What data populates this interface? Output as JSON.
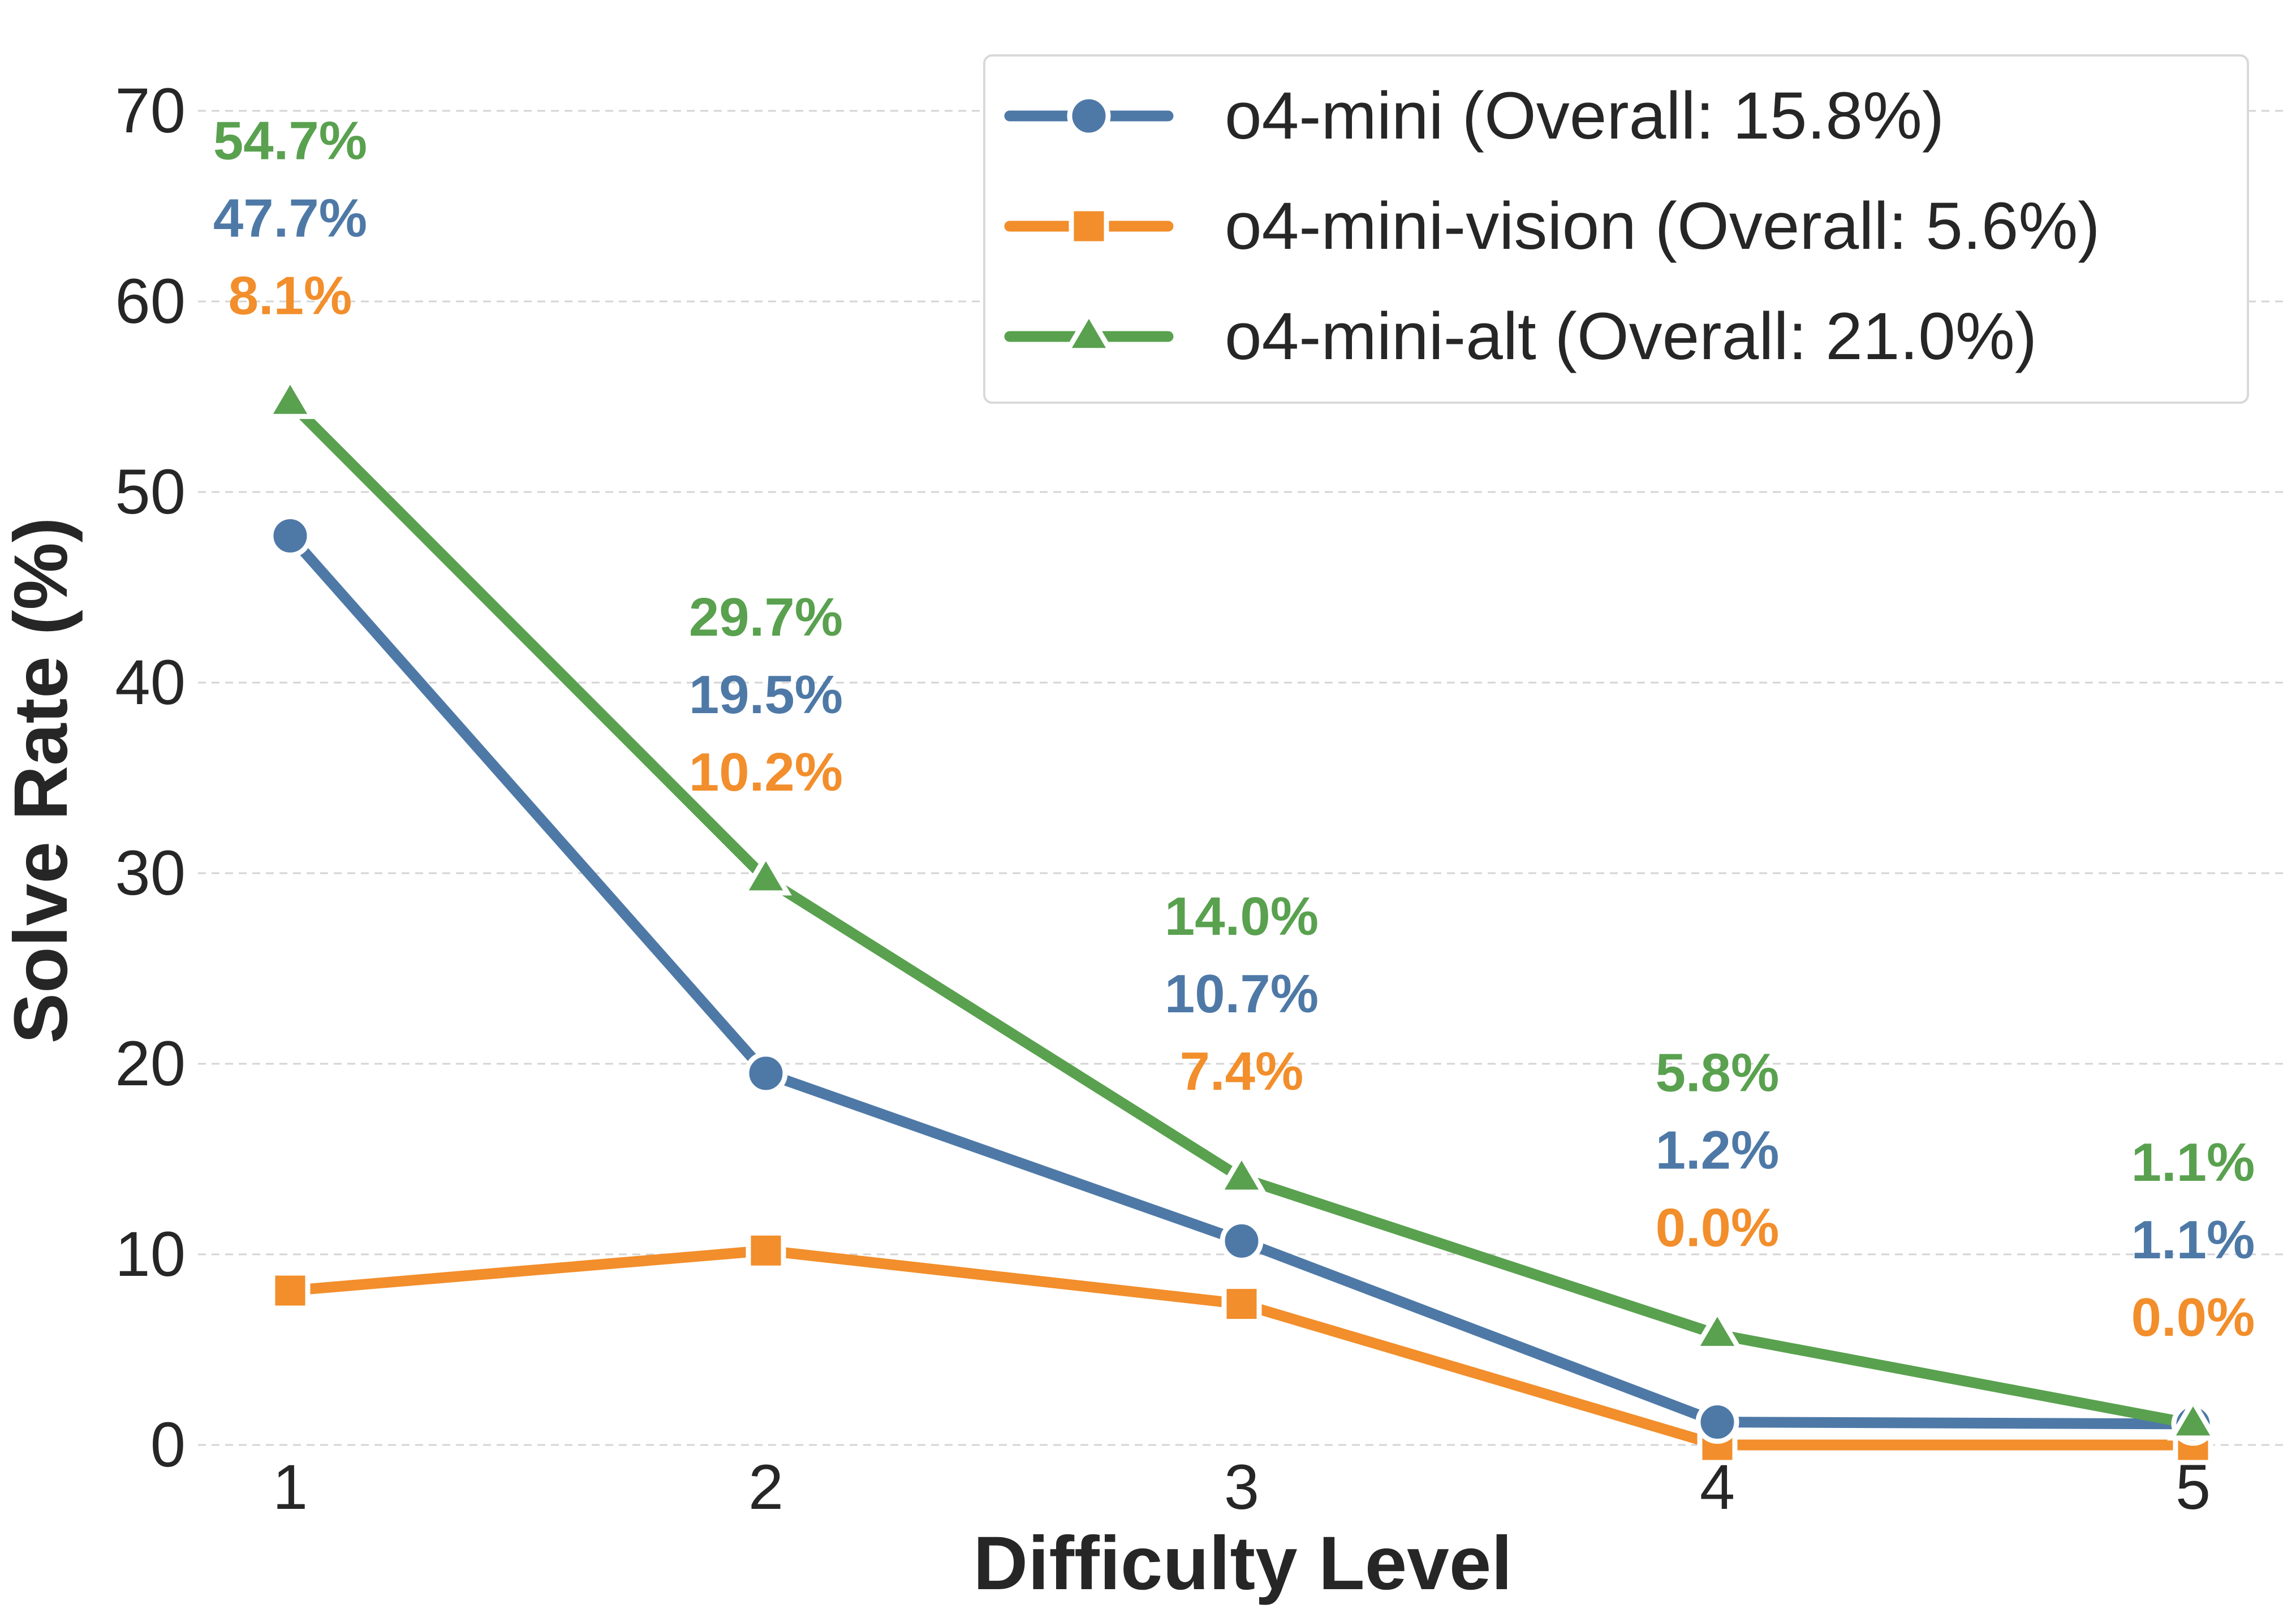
{
  "chart_data": {
    "type": "line",
    "xlabel": "Difficulty Level",
    "ylabel": "Solve Rate (%)",
    "x": [
      1,
      2,
      3,
      4,
      5
    ],
    "xlim": [
      0.8,
      5.2
    ],
    "ylim": [
      0,
      70
    ],
    "yticks": [
      0,
      10,
      20,
      30,
      40,
      50,
      60,
      70
    ],
    "grid": "horizontal dashed",
    "legend_position": "top-right",
    "series": [
      {
        "name": "o4-mini",
        "legend_label": "o4-mini (Overall: 15.8%)",
        "color": "#4e79a7",
        "marker": "circle",
        "values": [
          47.7,
          19.5,
          10.7,
          1.2,
          1.1
        ],
        "labels": [
          "47.7%",
          "19.5%",
          "10.7%",
          "1.2%",
          "1.1%"
        ]
      },
      {
        "name": "o4-mini-vision",
        "legend_label": "o4-mini-vision (Overall: 5.6%)",
        "color": "#f28e2b",
        "marker": "square",
        "values": [
          8.1,
          10.2,
          7.4,
          0.0,
          0.0
        ],
        "labels": [
          "8.1%",
          "10.2%",
          "7.4%",
          "0.0%",
          "0.0%"
        ]
      },
      {
        "name": "o4-mini-alt",
        "legend_label": "o4-mini-alt (Overall: 21.0%)",
        "color": "#59a14f",
        "marker": "triangle",
        "values": [
          54.7,
          29.7,
          14.0,
          5.8,
          1.1
        ],
        "labels": [
          "54.7%",
          "29.7%",
          "14.0%",
          "5.8%",
          "1.1%"
        ]
      }
    ]
  }
}
